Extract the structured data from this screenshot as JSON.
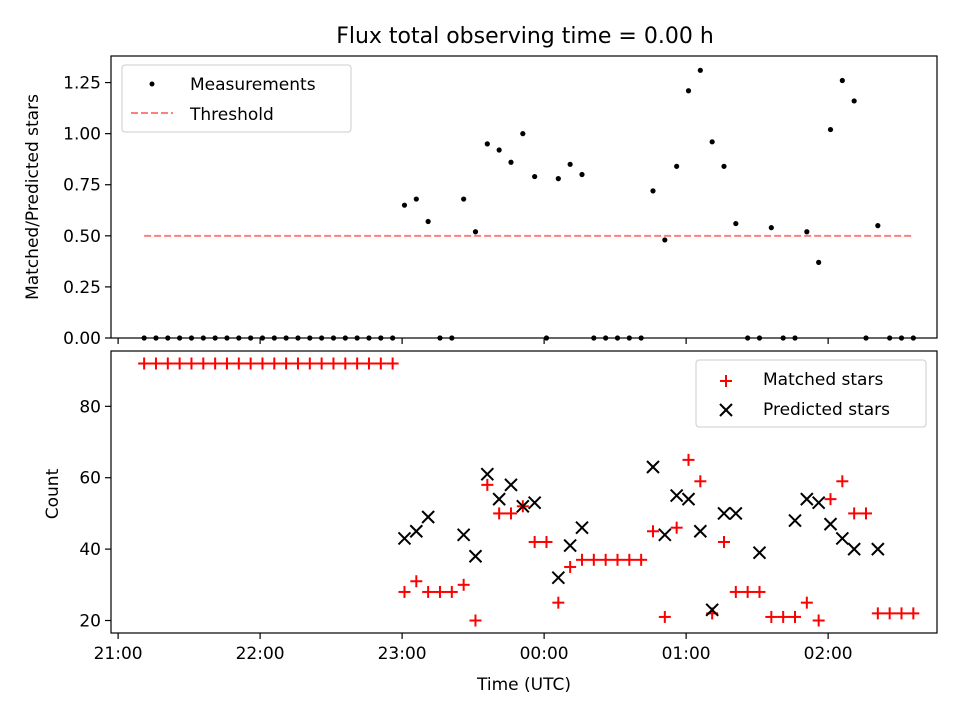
{
  "chart_data": [
    {
      "type": "scatter",
      "title": "Flux total observing time = 0.00 h",
      "xlabel": "",
      "ylabel": "Matched/Predicted stars",
      "xlim": [
        "20:57",
        "02:46"
      ],
      "ylim": [
        0,
        1.38
      ],
      "yticks": [
        0.0,
        0.25,
        0.5,
        0.75,
        1.0,
        1.25
      ],
      "ytick_labels": [
        "0.00",
        "0.25",
        "0.50",
        "0.75",
        "1.00",
        "1.25"
      ],
      "xticks": [
        "21:00",
        "22:00",
        "23:00",
        "00:00",
        "01:00",
        "02:00"
      ],
      "grid": false,
      "legend": "top-left",
      "series": [
        {
          "name": "Measurements",
          "kind": "scatter",
          "color": "#000000",
          "x": [
            "21:11",
            "21:16",
            "21:21",
            "21:26",
            "21:31",
            "21:36",
            "21:41",
            "21:46",
            "21:51",
            "21:56",
            "22:01",
            "22:06",
            "22:11",
            "22:16",
            "22:21",
            "22:26",
            "22:31",
            "22:36",
            "22:41",
            "22:46",
            "22:51",
            "22:56",
            "23:01",
            "23:06",
            "23:11",
            "23:16",
            "23:21",
            "23:26",
            "23:31",
            "23:36",
            "23:41",
            "23:46",
            "23:51",
            "23:56",
            "00:01",
            "00:06",
            "00:11",
            "00:16",
            "00:21",
            "00:26",
            "00:31",
            "00:36",
            "00:41",
            "00:46",
            "00:51",
            "00:56",
            "01:01",
            "01:06",
            "01:11",
            "01:16",
            "01:21",
            "01:26",
            "01:31",
            "01:36",
            "01:41",
            "01:46",
            "01:51",
            "01:56",
            "02:01",
            "02:06",
            "02:11",
            "02:16",
            "02:21",
            "02:26",
            "02:31",
            "02:36"
          ],
          "y": [
            0,
            0,
            0,
            0,
            0,
            0,
            0,
            0,
            0,
            0,
            0,
            0,
            0,
            0,
            0,
            0,
            0,
            0,
            0,
            0,
            0,
            0,
            0.65,
            0.68,
            0.57,
            0,
            0,
            0.68,
            0.52,
            0.95,
            0.92,
            0.86,
            1.0,
            0.79,
            0,
            0.78,
            0.85,
            0.8,
            0,
            0,
            0,
            0,
            0,
            0.72,
            0.48,
            0.84,
            1.21,
            1.31,
            0.96,
            0.84,
            0.56,
            0,
            0,
            0.54,
            0,
            0,
            0.52,
            0.37,
            1.02,
            1.26,
            1.16,
            0,
            0.55,
            0,
            0,
            0
          ]
        },
        {
          "name": "Threshold",
          "kind": "line",
          "color": "#ff7f7f",
          "dash": "dashed",
          "x": [
            "21:11",
            "02:36"
          ],
          "y": [
            0.5,
            0.5
          ]
        }
      ]
    },
    {
      "type": "scatter",
      "title": "",
      "xlabel": "Time (UTC)",
      "ylabel": "Count",
      "xlim": [
        "20:57",
        "02:46"
      ],
      "ylim": [
        16.5,
        95.5
      ],
      "yticks": [
        20,
        40,
        60,
        80
      ],
      "ytick_labels": [
        "20",
        "40",
        "60",
        "80"
      ],
      "xticks": [
        "21:00",
        "22:00",
        "23:00",
        "00:00",
        "01:00",
        "02:00"
      ],
      "xtick_labels": [
        "21:00",
        "22:00",
        "23:00",
        "00:00",
        "01:00",
        "02:00"
      ],
      "grid": false,
      "legend": "top-right",
      "series": [
        {
          "name": "Matched stars",
          "marker": "plus",
          "color": "#ff0000",
          "x": [
            "21:11",
            "21:16",
            "21:21",
            "21:26",
            "21:31",
            "21:36",
            "21:41",
            "21:46",
            "21:51",
            "21:56",
            "22:01",
            "22:06",
            "22:11",
            "22:16",
            "22:21",
            "22:26",
            "22:31",
            "22:36",
            "22:41",
            "22:46",
            "22:51",
            "22:56",
            "23:01",
            "23:06",
            "23:11",
            "23:16",
            "23:21",
            "23:26",
            "23:31",
            "23:36",
            "23:41",
            "23:46",
            "23:51",
            "23:56",
            "00:01",
            "00:06",
            "00:11",
            "00:16",
            "00:21",
            "00:26",
            "00:31",
            "00:36",
            "00:41",
            "00:46",
            "00:51",
            "00:56",
            "01:01",
            "01:06",
            "01:11",
            "01:16",
            "01:21",
            "01:26",
            "01:31",
            "01:36",
            "01:41",
            "01:46",
            "01:51",
            "01:56",
            "02:01",
            "02:06",
            "02:11",
            "02:16",
            "02:21",
            "02:26",
            "02:31",
            "02:36"
          ],
          "y": [
            92,
            92,
            92,
            92,
            92,
            92,
            92,
            92,
            92,
            92,
            92,
            92,
            92,
            92,
            92,
            92,
            92,
            92,
            92,
            92,
            92,
            92,
            28,
            31,
            28,
            28,
            28,
            30,
            20,
            58,
            50,
            50,
            52,
            42,
            42,
            25,
            35,
            37,
            37,
            37,
            37,
            37,
            37,
            45,
            21,
            46,
            65,
            59,
            22,
            42,
            28,
            28,
            28,
            21,
            21,
            21,
            25,
            20,
            54,
            59,
            50,
            50,
            22,
            22,
            22,
            22
          ]
        },
        {
          "name": "Predicted stars",
          "marker": "x",
          "color": "#000000",
          "x": [
            "23:01",
            "23:06",
            "23:11",
            "23:26",
            "23:31",
            "23:36",
            "23:41",
            "23:46",
            "23:51",
            "23:56",
            "00:06",
            "00:11",
            "00:16",
            "00:46",
            "00:51",
            "00:56",
            "01:01",
            "01:06",
            "01:11",
            "01:16",
            "01:21",
            "01:31",
            "01:46",
            "01:51",
            "01:56",
            "02:01",
            "02:06",
            "02:11",
            "02:21"
          ],
          "y": [
            43,
            45,
            49,
            44,
            38,
            61,
            54,
            58,
            52,
            53,
            32,
            41,
            46,
            63,
            44,
            55,
            54,
            45,
            23,
            50,
            50,
            39,
            48,
            54,
            53,
            47,
            43,
            40,
            40
          ]
        }
      ]
    }
  ]
}
